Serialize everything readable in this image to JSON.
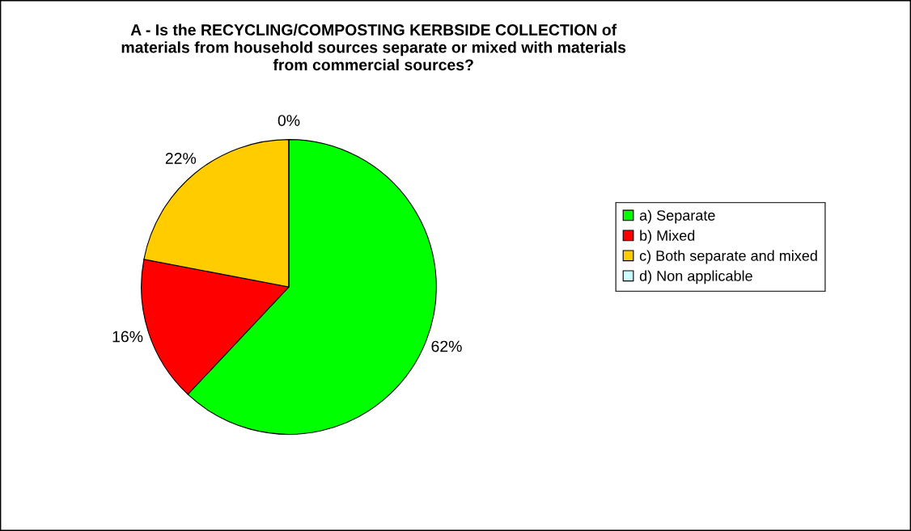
{
  "chart_data": {
    "type": "pie",
    "title": "A - Is the RECYCLING/COMPOSTING KERBSIDE COLLECTION of\nmaterials from household sources separate or mixed with materials\nfrom commercial sources?",
    "categories": [
      "a) Separate",
      "b) Mixed",
      "c) Both separate and mixed",
      "d) Non applicable"
    ],
    "values": [
      62,
      16,
      22,
      0
    ],
    "colors": [
      "#00ff00",
      "#ff0000",
      "#ffcc00",
      "#ccffff"
    ],
    "value_labels": [
      "62%",
      "16%",
      "22%",
      "0%"
    ],
    "legend": "right"
  }
}
